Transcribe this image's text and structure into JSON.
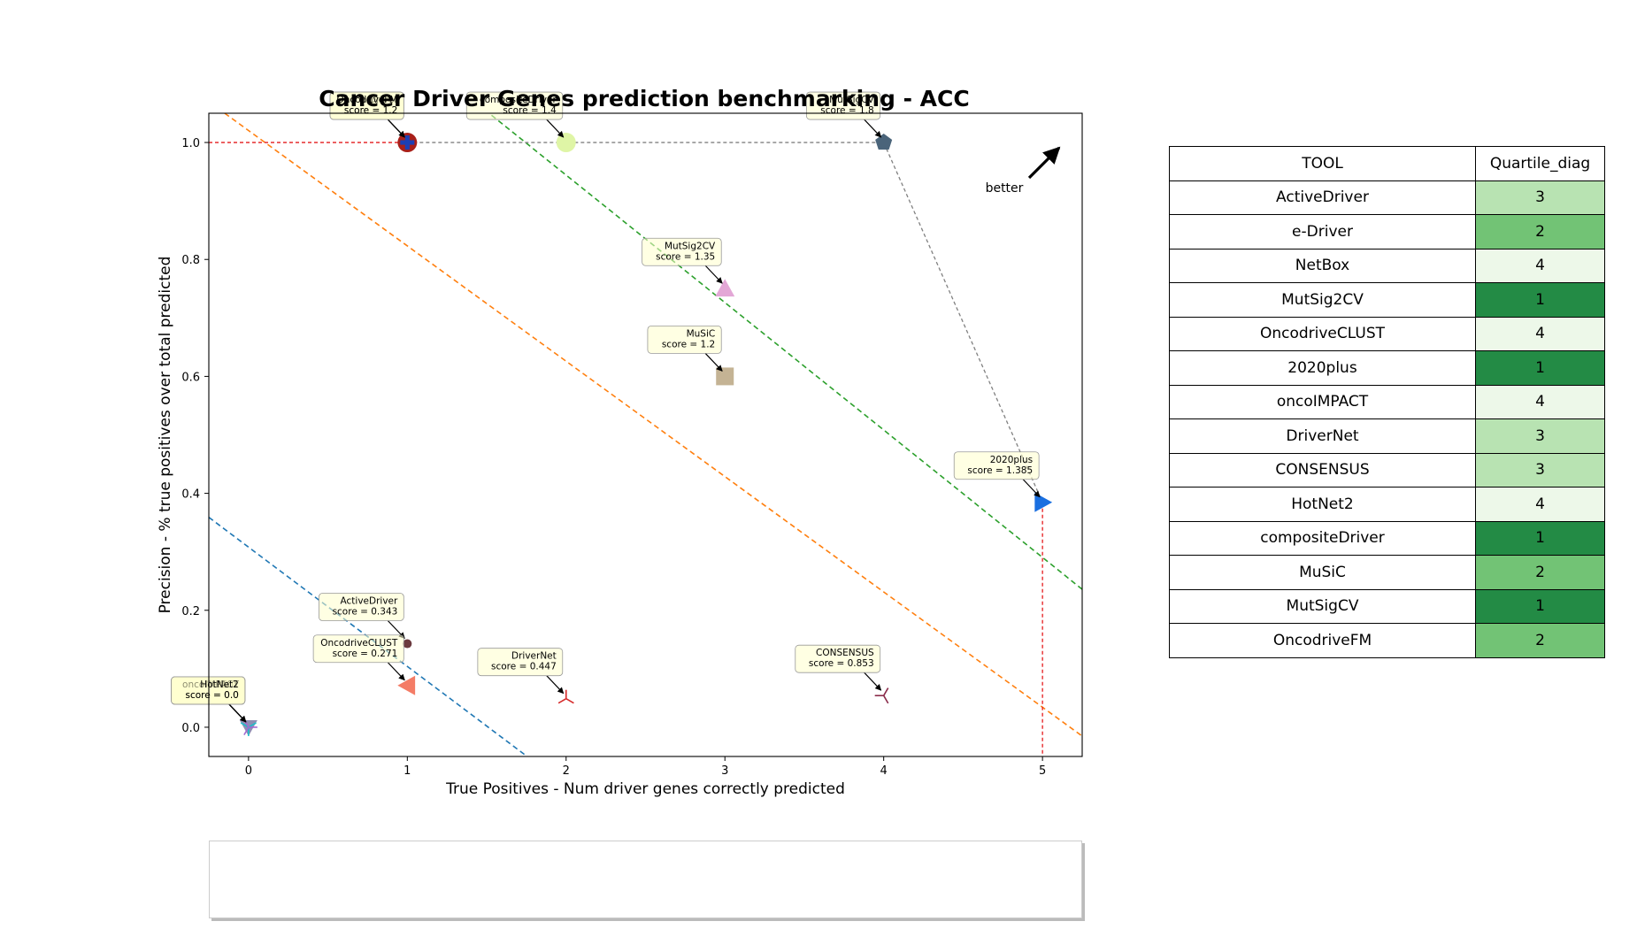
{
  "chart_data": {
    "type": "scatter",
    "title": "Cancer Driver Genes prediction benchmarking - ACC",
    "xlabel": "True Positives - Num driver genes correctly predicted",
    "ylabel": "Precision - % true positives over total predicted",
    "xlim": [
      -0.25,
      5.25
    ],
    "ylim": [
      -0.05,
      1.05
    ],
    "xticks": [
      0,
      1,
      2,
      3,
      4,
      5
    ],
    "yticks": [
      0.0,
      0.2,
      0.4,
      0.6,
      0.8,
      1.0
    ],
    "annotation_better": "better",
    "grid": false,
    "legend_position": "bottom",
    "points": [
      {
        "name": "ActiveDriver",
        "x": 1,
        "y": 0.1429,
        "label": "ActiveDriver\nscore = 0.343",
        "marker": "dot",
        "color": "#6b3a3f"
      },
      {
        "name": "e-Driver",
        "x": 1,
        "y": 1.0,
        "label": "e-Driver\nscore = 1.2",
        "marker": "circle",
        "color": "#a8201a"
      },
      {
        "name": "NetBox",
        "x": 0,
        "y": 0.0,
        "label": "NetBox\nscore = 0.0",
        "marker": "triangle-down",
        "color": "#8e8fb4"
      },
      {
        "name": "MutSig2CV",
        "x": 3,
        "y": 0.75,
        "label": "MutSig2CV\nscore = 1.35",
        "marker": "triangle-up",
        "color": "#e3a7d6"
      },
      {
        "name": "OncodriveCLUST",
        "x": 1,
        "y": 0.0714,
        "label": "OncodriveCLUST\nscore = 0.271",
        "marker": "triangle-left",
        "color": "#f47c66"
      },
      {
        "name": "2020plus",
        "x": 5,
        "y": 0.3846,
        "label": "2020plus\nscore = 1.385",
        "marker": "triangle-right",
        "color": "#1a6fe0"
      },
      {
        "name": "oncoIMPACT",
        "x": 0,
        "y": 0.0,
        "label": "oncoIMPACT\nscore = 0.0",
        "marker": "tri-down",
        "color": "#1bbec9"
      },
      {
        "name": "DriverNet",
        "x": 2,
        "y": 0.0488,
        "label": "DriverNet\nscore = 0.447",
        "marker": "tri-up",
        "color": "#d62b2b"
      },
      {
        "name": "CONSENSUS",
        "x": 4,
        "y": 0.0541,
        "label": "CONSENSUS\nscore = 0.853",
        "marker": "tri-left",
        "color": "#8a2b4a"
      },
      {
        "name": "HotNet2",
        "x": 0,
        "y": 0.0,
        "label": "HotNet2\nscore = 0.0",
        "marker": "tri-right",
        "color": "#a36ad0"
      },
      {
        "name": "compositeDriver",
        "x": 2,
        "y": 1.0,
        "label": "compositeDriver\nscore = 1.4",
        "marker": "circle",
        "color": "#dff5a6"
      },
      {
        "name": "MuSiC",
        "x": 3,
        "y": 0.6,
        "label": "MuSiC\nscore = 1.2",
        "marker": "square",
        "color": "#c4b394"
      },
      {
        "name": "MutSigCV",
        "x": 4,
        "y": 1.0,
        "label": "MutSigCV\nscore = 1.8",
        "marker": "pentagon",
        "color": "#4a647a"
      },
      {
        "name": "OncodriveFM",
        "x": 1,
        "y": 1.0,
        "label": "OncodriveFM\nscore = 1.2",
        "marker": "plus",
        "color": "#1c3fb5"
      }
    ],
    "pareto_frontier": [
      [
        1,
        1.0
      ],
      [
        4,
        1.0
      ],
      [
        5,
        0.3846
      ]
    ],
    "quartile_lines": [
      {
        "color": "#1f77b4",
        "points": [
          [
            -0.25,
            0.359
          ],
          [
            2.0,
            -0.1
          ]
        ]
      },
      {
        "color": "#ff7f0e",
        "points": [
          [
            -0.15,
            1.05
          ],
          [
            5.3,
            -0.025
          ]
        ]
      },
      {
        "color": "#2ca02c",
        "points": [
          [
            1.4,
            1.075
          ],
          [
            5.3,
            0.225
          ]
        ]
      }
    ],
    "reference_lines": [
      {
        "color": "#e41a1c",
        "points": [
          [
            -0.25,
            1.0
          ],
          [
            1.0,
            1.0
          ]
        ]
      },
      {
        "color": "#e41a1c",
        "points": [
          [
            5.0,
            0.3846
          ],
          [
            5.0,
            -0.05
          ]
        ]
      }
    ]
  },
  "table": {
    "headers": [
      "TOOL",
      "Quartile_diag"
    ],
    "rows": [
      {
        "tool": "ActiveDriver",
        "quartile": "3",
        "color": "#b8e3b2"
      },
      {
        "tool": "e-Driver",
        "quartile": "2",
        "color": "#72c375"
      },
      {
        "tool": "NetBox",
        "quartile": "4",
        "color": "#edf8e9"
      },
      {
        "tool": "MutSig2CV",
        "quartile": "1",
        "color": "#238b45"
      },
      {
        "tool": "OncodriveCLUST",
        "quartile": "4",
        "color": "#edf8e9"
      },
      {
        "tool": "2020plus",
        "quartile": "1",
        "color": "#238b45"
      },
      {
        "tool": "oncoIMPACT",
        "quartile": "4",
        "color": "#edf8e9"
      },
      {
        "tool": "DriverNet",
        "quartile": "3",
        "color": "#b8e3b2"
      },
      {
        "tool": "CONSENSUS",
        "quartile": "3",
        "color": "#b8e3b2"
      },
      {
        "tool": "HotNet2",
        "quartile": "4",
        "color": "#edf8e9"
      },
      {
        "tool": "compositeDriver",
        "quartile": "1",
        "color": "#238b45"
      },
      {
        "tool": "MuSiC",
        "quartile": "2",
        "color": "#72c375"
      },
      {
        "tool": "MutSigCV",
        "quartile": "1",
        "color": "#238b45"
      },
      {
        "tool": "OncodriveFM",
        "quartile": "2",
        "color": "#72c375"
      }
    ]
  }
}
